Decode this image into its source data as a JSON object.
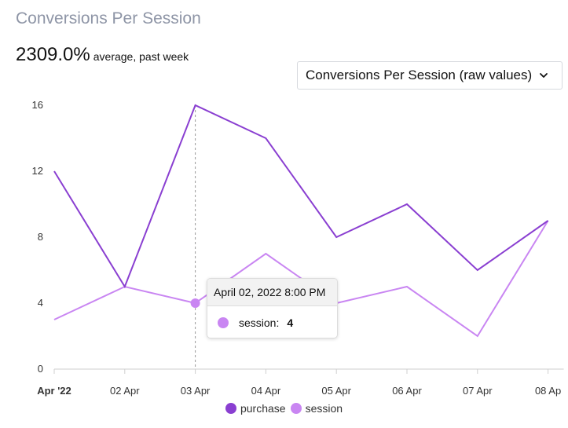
{
  "header": {
    "title": "Conversions Per Session",
    "summary_value": "2309.0%",
    "summary_label": "average, past week"
  },
  "dropdown": {
    "selected": "Conversions Per Session (raw values)",
    "icon": "chevron-down-icon"
  },
  "tooltip": {
    "date": "April 02, 2022 8:00 PM",
    "series_label": "session:",
    "value": "4"
  },
  "chart_data": {
    "type": "line",
    "title": "Conversions Per Session",
    "categories": [
      "Apr '22",
      "02 Apr",
      "03 Apr",
      "04 Apr",
      "05 Apr",
      "06 Apr",
      "07 Apr",
      "08 Ap"
    ],
    "series": [
      {
        "name": "purchase",
        "color": "#8a3fd1",
        "values": [
          12,
          5,
          16,
          14,
          8,
          10,
          6,
          9
        ]
      },
      {
        "name": "session",
        "color": "#c986f2",
        "values": [
          3,
          5,
          4,
          7,
          4,
          5,
          2,
          9
        ]
      }
    ],
    "yticks": [
      0,
      4,
      8,
      12,
      16
    ],
    "ylim": [
      0,
      16
    ],
    "xlabel": "",
    "ylabel": "",
    "legend_position": "bottom-center",
    "grid": false,
    "highlight": {
      "series": "session",
      "category": "03 Apr",
      "value": 4
    }
  }
}
